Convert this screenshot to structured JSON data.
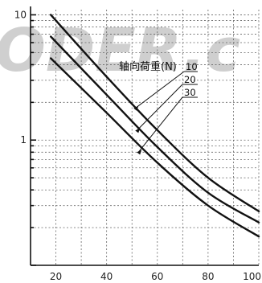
{
  "chart_data": {
    "type": "line",
    "x_ticks": [
      20,
      40,
      60,
      80,
      100
    ],
    "xlim": [
      10,
      100
    ],
    "y_scale": "log",
    "ylim": [
      0.1,
      11
    ],
    "y_ticks": [
      1,
      10
    ],
    "grid": true,
    "watermark": "ODER.c",
    "legend_title": "轴向荷重(N)",
    "legend_placement": "center",
    "series": [
      {
        "name": "10",
        "x": [
          18,
          40,
          60,
          80,
          100
        ],
        "y": [
          10,
          3.2,
          1.2,
          0.5,
          0.27
        ]
      },
      {
        "name": "20",
        "x": [
          18,
          40,
          60,
          80,
          100
        ],
        "y": [
          6.7,
          2.3,
          0.88,
          0.38,
          0.22
        ]
      },
      {
        "name": "30",
        "x": [
          18,
          40,
          60,
          80,
          100
        ],
        "y": [
          4.5,
          1.65,
          0.66,
          0.3,
          0.17
        ]
      }
    ]
  }
}
